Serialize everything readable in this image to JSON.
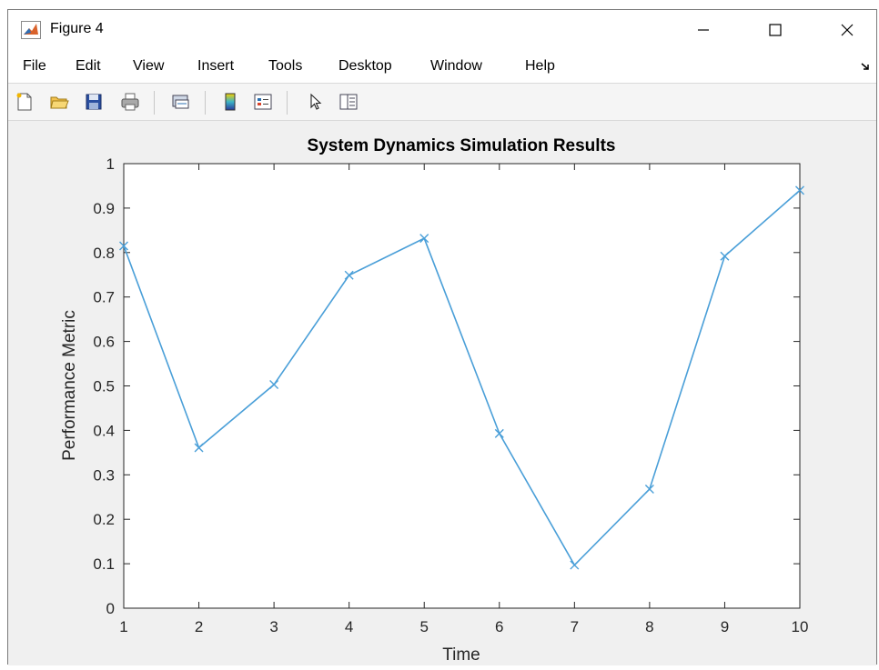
{
  "window": {
    "title": "Figure 4",
    "controls": {
      "minimize": "minimize",
      "maximize": "maximize",
      "close": "close"
    }
  },
  "menu": {
    "items": [
      "File",
      "Edit",
      "View",
      "Insert",
      "Tools",
      "Desktop",
      "Window",
      "Help"
    ]
  },
  "toolbar": {
    "buttons": [
      "new-figure-icon",
      "open-file-icon",
      "save-icon",
      "print-icon",
      "link-plot-icon",
      "insert-colorbar-icon",
      "insert-legend-icon",
      "edit-plot-icon",
      "property-inspector-icon"
    ]
  },
  "colors": {
    "line": "#4a9fd8",
    "axes": "#262626"
  },
  "chart_data": {
    "type": "line",
    "title": "System Dynamics Simulation Results",
    "xlabel": "Time",
    "ylabel": "Performance Metric",
    "x": [
      1,
      2,
      3,
      4,
      5,
      6,
      7,
      8,
      9,
      10
    ],
    "series": [
      {
        "values": [
          0.815,
          0.361,
          0.503,
          0.749,
          0.832,
          0.393,
          0.097,
          0.268,
          0.792,
          0.94
        ],
        "marker": "x"
      }
    ],
    "xlim": [
      1,
      10
    ],
    "ylim": [
      0,
      1
    ],
    "xticks": [
      "1",
      "2",
      "3",
      "4",
      "5",
      "6",
      "7",
      "8",
      "9",
      "10"
    ],
    "yticks": [
      "0",
      "0.1",
      "0.2",
      "0.3",
      "0.4",
      "0.5",
      "0.6",
      "0.7",
      "0.8",
      "0.9",
      "1"
    ],
    "grid": false
  }
}
